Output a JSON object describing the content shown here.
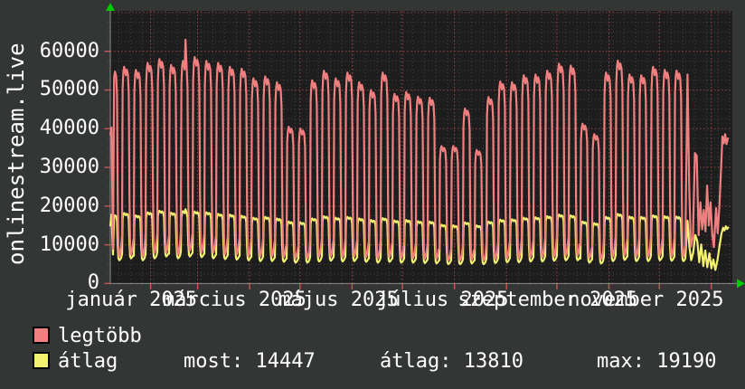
{
  "app": {
    "title": "onlinestream.live"
  },
  "chart_data": {
    "type": "line",
    "title": "onlinestream.live",
    "grid": true,
    "legend_position": "bottom-left",
    "ylim": [
      0,
      70000
    ],
    "y_ticks": [
      0,
      10000,
      20000,
      30000,
      40000,
      50000,
      60000
    ],
    "y_minor_step": 2500,
    "x_axis": {
      "days_total": 370.5,
      "month_gridlines_day": [
        24,
        52,
        83,
        113,
        144,
        174,
        205,
        236,
        266,
        297,
        327,
        358
      ],
      "week_minor_start_day": 5,
      "week_minor_step": 7,
      "labels": [
        {
          "text": "január 2025",
          "day": 12.5
        },
        {
          "text": "március 2025",
          "day": 74
        },
        {
          "text": "május 2025",
          "day": 136
        },
        {
          "text": "július 2025",
          "day": 198
        },
        {
          "text": "szeptember 2025",
          "day": 260.5
        },
        {
          "text": "november 2025",
          "day": 319
        }
      ]
    },
    "waveform": [
      [
        0,
        0.1
      ],
      [
        0.05,
        0.88
      ],
      [
        0.11,
        0.97
      ],
      [
        0.18,
        1.0
      ],
      [
        0.32,
        0.955
      ],
      [
        0.4,
        0.985
      ],
      [
        0.5,
        0.96
      ],
      [
        0.57,
        0.86
      ],
      [
        0.63,
        0.3
      ],
      [
        0.69,
        0.04
      ],
      [
        0.76,
        0.0
      ],
      [
        0.85,
        0.02
      ],
      [
        0.93,
        0.06
      ]
    ],
    "spike_slot_f": 0.4,
    "series": [
      {
        "key": "atlag",
        "name": "átlag",
        "color": "#f2f172",
        "head": [
          [
            0,
            15000
          ],
          [
            0.7,
            17800
          ],
          [
            1.6,
            7500
          ]
        ],
        "weekly": [
          [
            17800,
            6000
          ],
          [
            18200,
            6500
          ],
          [
            17600,
            6000
          ],
          [
            18400,
            6500
          ],
          [
            18800,
            7000
          ],
          [
            18300,
            6500
          ],
          [
            18700,
            7000,
            19190
          ],
          [
            18600,
            6800
          ],
          [
            18400,
            6500
          ],
          [
            18000,
            6300
          ],
          [
            17800,
            6200
          ],
          [
            17500,
            6000
          ],
          [
            17000,
            5800
          ],
          [
            17200,
            5800
          ],
          [
            16800,
            5600
          ],
          [
            16000,
            5400
          ],
          [
            15800,
            5400
          ],
          [
            16800,
            5700
          ],
          [
            17400,
            5900
          ],
          [
            17000,
            5700
          ],
          [
            17200,
            5800
          ],
          [
            16800,
            5600
          ],
          [
            16400,
            5400
          ],
          [
            16900,
            5600
          ],
          [
            16300,
            5400
          ],
          [
            16400,
            5400
          ],
          [
            16100,
            5300
          ],
          [
            16000,
            5200
          ],
          [
            15200,
            5000
          ],
          [
            15000,
            5000
          ],
          [
            15800,
            5200
          ],
          [
            15000,
            5000
          ],
          [
            16000,
            5300
          ],
          [
            16500,
            5500
          ],
          [
            16600,
            5500
          ],
          [
            17000,
            5700
          ],
          [
            17100,
            5700
          ],
          [
            17400,
            5900
          ],
          [
            17800,
            6000
          ],
          [
            17600,
            6000
          ],
          [
            16000,
            5400
          ],
          [
            15600,
            5200
          ],
          [
            17200,
            5800
          ],
          [
            18000,
            6100
          ],
          [
            17300,
            5800
          ],
          [
            17200,
            5800
          ],
          [
            17600,
            6000
          ],
          [
            17400,
            5900
          ],
          [
            17300,
            5800
          ]
        ],
        "tail": [
          [
            343.8,
            16200
          ],
          [
            344.9,
            9500
          ],
          [
            346,
            6000
          ],
          [
            347.2,
            8000
          ],
          [
            348.4,
            12500
          ],
          [
            349.6,
            11000
          ],
          [
            350.8,
            5500
          ],
          [
            352,
            10100
          ],
          [
            353.2,
            4500
          ],
          [
            354.4,
            8500
          ],
          [
            355.6,
            4200
          ],
          [
            356.8,
            7800
          ],
          [
            358,
            3900
          ],
          [
            359.2,
            6200
          ],
          [
            360.4,
            3500
          ],
          [
            361.6,
            6000
          ],
          [
            362.8,
            9500
          ],
          [
            364,
            12800
          ],
          [
            365,
            14400
          ],
          [
            365.8,
            13700
          ],
          [
            366.6,
            14800
          ],
          [
            367.4,
            14100
          ],
          [
            368,
            14447
          ]
        ]
      },
      {
        "key": "legtobb",
        "name": "legtöbb",
        "color": "#f08080",
        "head": [
          [
            0,
            38500
          ],
          [
            0.7,
            40300
          ],
          [
            1.6,
            9000
          ]
        ],
        "weekly": [
          [
            55500,
            7000
          ],
          [
            56000,
            7500
          ],
          [
            55200,
            7000
          ],
          [
            57000,
            8000
          ],
          [
            58000,
            8000
          ],
          [
            56500,
            7500
          ],
          [
            57500,
            8500,
            63000
          ],
          [
            58500,
            8000
          ],
          [
            57500,
            8000
          ],
          [
            57000,
            7500
          ],
          [
            56000,
            7500
          ],
          [
            55500,
            7000
          ],
          [
            53000,
            7000
          ],
          [
            53500,
            7000
          ],
          [
            52000,
            6800
          ],
          [
            40500,
            6500
          ],
          [
            40000,
            6500
          ],
          [
            52500,
            7000
          ],
          [
            55000,
            7000
          ],
          [
            53000,
            6800
          ],
          [
            54500,
            7000
          ],
          [
            52000,
            6800
          ],
          [
            50000,
            6500
          ],
          [
            54500,
            6800
          ],
          [
            49000,
            6500
          ],
          [
            49500,
            6500
          ],
          [
            48300,
            6300
          ],
          [
            48000,
            6300
          ],
          [
            35500,
            6000
          ],
          [
            35500,
            6000
          ],
          [
            45200,
            6200
          ],
          [
            34500,
            6000
          ],
          [
            48200,
            6300
          ],
          [
            52200,
            6500
          ],
          [
            52000,
            6500
          ],
          [
            53800,
            6800
          ],
          [
            54000,
            6800
          ],
          [
            55000,
            7000
          ],
          [
            56800,
            7200
          ],
          [
            56300,
            7200
          ],
          [
            41300,
            6500
          ],
          [
            38600,
            6300
          ],
          [
            54500,
            7000
          ],
          [
            57600,
            7300
          ],
          [
            54000,
            7000
          ],
          [
            53800,
            7000
          ],
          [
            56000,
            7200
          ],
          [
            55200,
            7000
          ],
          [
            55000,
            7000
          ]
        ],
        "tail": [
          [
            343.8,
            54000
          ],
          [
            344.8,
            25000
          ],
          [
            345.8,
            9500
          ],
          [
            347,
            12000
          ],
          [
            348.2,
            33700
          ],
          [
            349.3,
            33000
          ],
          [
            350.4,
            12500
          ],
          [
            351.5,
            21000
          ],
          [
            352.5,
            14000
          ],
          [
            353.5,
            19000
          ],
          [
            354.5,
            13500
          ],
          [
            355.5,
            25300
          ],
          [
            356.5,
            15000
          ],
          [
            357.5,
            21000
          ],
          [
            358.5,
            13000
          ],
          [
            359.5,
            9400
          ],
          [
            360.8,
            19500
          ],
          [
            361.8,
            13000
          ],
          [
            362.8,
            20000
          ],
          [
            363.8,
            30000
          ],
          [
            364.6,
            38000
          ],
          [
            365.4,
            36200
          ],
          [
            366.2,
            38600
          ],
          [
            367,
            36000
          ],
          [
            367.8,
            37500
          ]
        ]
      }
    ],
    "stats": {
      "most": 14447,
      "átlag": 13810,
      "max": 19190
    }
  },
  "legend": {
    "items": [
      {
        "label": "legtöbb",
        "color": "#f08080"
      },
      {
        "label": "átlag",
        "color": "#f2f172"
      }
    ],
    "stats_row": [
      {
        "text": "most: 14447"
      },
      {
        "text": "átlag: 13810"
      },
      {
        "text": "max: 19190"
      }
    ]
  },
  "colors": {
    "background": "#343636",
    "plot_background": "#1d1d1d",
    "grid_minor": "#606060",
    "grid_major": "#b24a4a",
    "axis": "#8a8a8a",
    "arrow": "#00cc00",
    "text": "#ffffff"
  }
}
